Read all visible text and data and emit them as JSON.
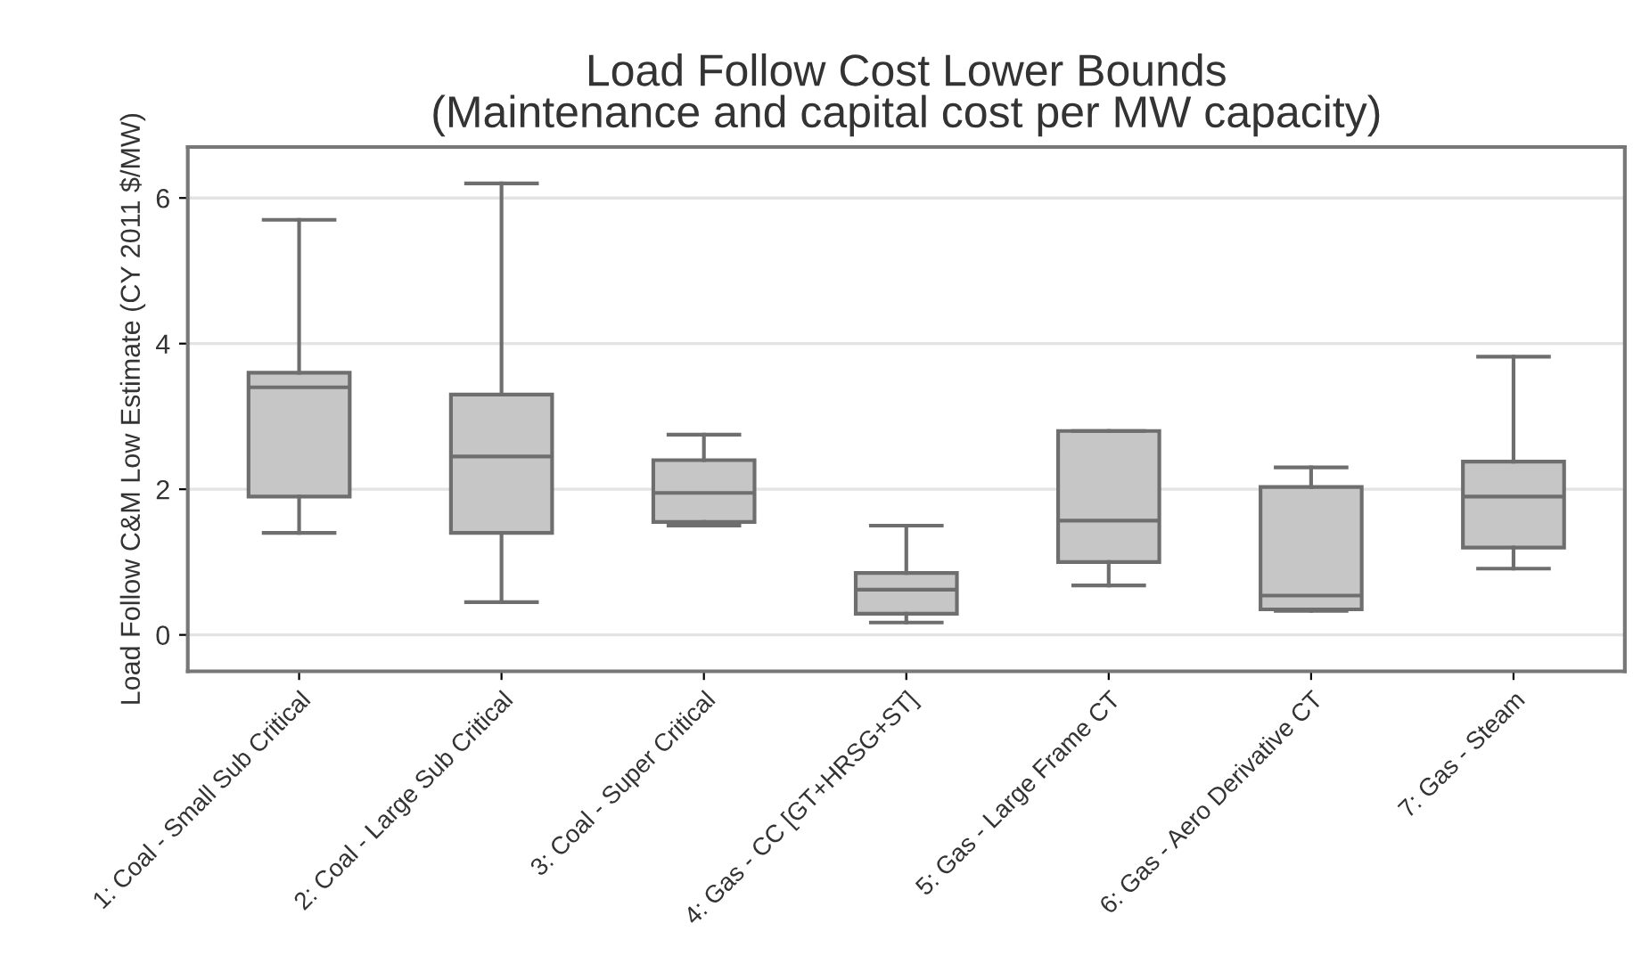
{
  "chart_data": {
    "type": "box",
    "title": "Load Follow Cost Lower Bounds\n(Maintenance and capital cost per MW capacity)",
    "ylabel": "Load Follow C&M Low Estimate (CY 2011 $/MW)",
    "categories": [
      "1: Coal - Small Sub Critical",
      "2: Coal - Large Sub Critical",
      "3: Coal - Super Critical",
      "4: Gas - CC [GT+HRSG+ST]",
      "5: Gas - Large Frame CT",
      "6: Gas - Aero Derivative CT",
      "7: Gas - Steam"
    ],
    "boxes": [
      {
        "low": 1.4,
        "q1": 1.9,
        "median": 3.4,
        "q3": 3.6,
        "high": 5.7
      },
      {
        "low": 0.45,
        "q1": 1.4,
        "median": 2.45,
        "q3": 3.3,
        "high": 6.2
      },
      {
        "low": 1.5,
        "q1": 1.55,
        "median": 1.95,
        "q3": 2.4,
        "high": 2.75
      },
      {
        "low": 0.17,
        "q1": 0.29,
        "median": 0.62,
        "q3": 0.85,
        "high": 1.5
      },
      {
        "low": 0.68,
        "q1": 1.0,
        "median": 1.57,
        "q3": 2.8,
        "high": 2.8
      },
      {
        "low": 0.33,
        "q1": 0.35,
        "median": 0.54,
        "q3": 2.03,
        "high": 2.3
      },
      {
        "low": 0.91,
        "q1": 1.2,
        "median": 1.9,
        "q3": 2.38,
        "high": 3.82
      }
    ],
    "color": "#c6c6c6",
    "ylim": [
      -0.5,
      6.7
    ],
    "yticks": [
      0,
      2,
      4,
      6
    ],
    "grid": "y"
  }
}
